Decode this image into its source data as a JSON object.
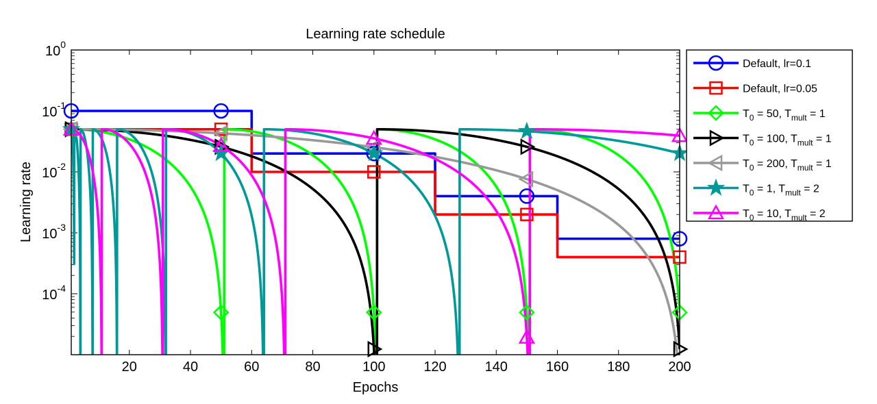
{
  "chart_data": {
    "type": "line",
    "title": "Learning rate schedule",
    "xlabel": "Epochs",
    "ylabel": "Learning rate",
    "xlim": [
      1,
      200
    ],
    "ylim": [
      1e-05,
      1
    ],
    "yscale": "log",
    "grid": false,
    "legend_position": "outside-right",
    "x_ticks": [
      20,
      40,
      60,
      80,
      100,
      120,
      140,
      160,
      180,
      200
    ],
    "x_tick_labels": [
      "20",
      "40",
      "60",
      "80",
      "100",
      "120",
      "140",
      "160",
      "180",
      "200"
    ],
    "y_tick_values": [
      1,
      0.1,
      0.01,
      0.001,
      0.0001
    ],
    "y_tick_base": [
      "10",
      "10",
      "10",
      "10",
      "10"
    ],
    "y_tick_exp": [
      "0",
      "-1",
      "-2",
      "-3",
      "-4"
    ],
    "series": [
      {
        "name": "Default, lr=0.1",
        "legend_text": "Default, lr=0.1",
        "kind": "step",
        "color": "#0000ff",
        "marker": "circle",
        "steps": [
          [
            1,
            60,
            0.1
          ],
          [
            61,
            120,
            0.02
          ],
          [
            121,
            160,
            0.004
          ],
          [
            161,
            200,
            0.0008
          ]
        ],
        "markers_x": [
          1,
          50,
          100,
          150,
          200
        ]
      },
      {
        "name": "Default, lr=0.05",
        "legend_text": "Default, lr=0.05",
        "kind": "step",
        "color": "#ff0000",
        "marker": "square",
        "steps": [
          [
            1,
            60,
            0.05
          ],
          [
            61,
            120,
            0.01
          ],
          [
            121,
            160,
            0.002
          ],
          [
            161,
            200,
            0.0004
          ]
        ],
        "markers_x": [
          1,
          50,
          100,
          150,
          200
        ]
      },
      {
        "name": "T0 = 50, Tmult = 1",
        "legend_main": "T",
        "legend_sub1": "0",
        "legend_mid": " = 50, T",
        "legend_sub2": "mult",
        "legend_end": " = 1",
        "kind": "cosine",
        "color": "#00ff00",
        "marker": "diamond",
        "lr_max": 0.05,
        "T0": 50,
        "Tmult": 1,
        "markers_x": [
          1,
          50,
          100,
          150,
          200
        ]
      },
      {
        "name": "T0 = 100, Tmult = 1",
        "legend_main": "T",
        "legend_sub1": "0",
        "legend_mid": " = 100, T",
        "legend_sub2": "mult",
        "legend_end": " = 1",
        "kind": "cosine",
        "color": "#000000",
        "marker": "triangle-right",
        "lr_max": 0.05,
        "T0": 100,
        "Tmult": 1,
        "markers_x": [
          1,
          50,
          100,
          150,
          200
        ]
      },
      {
        "name": "T0 = 200, Tmult = 1",
        "legend_main": "T",
        "legend_sub1": "0",
        "legend_mid": " = 200, T",
        "legend_sub2": "mult",
        "legend_end": " = 1",
        "kind": "cosine",
        "color": "#999999",
        "marker": "triangle-left",
        "lr_max": 0.05,
        "T0": 200,
        "Tmult": 1,
        "markers_x": [
          1,
          50,
          100,
          150,
          200
        ]
      },
      {
        "name": "T0 = 1, Tmult = 2",
        "legend_main": "T",
        "legend_sub1": "0",
        "legend_mid": " = 1, T",
        "legend_sub2": "mult",
        "legend_end": " = 2",
        "kind": "cosine",
        "color": "#009999",
        "marker": "star",
        "lr_max": 0.05,
        "T0": 1,
        "Tmult": 2,
        "markers_x": [
          1,
          50,
          100,
          150,
          200
        ]
      },
      {
        "name": "T0 = 10, Tmult = 2",
        "legend_main": "T",
        "legend_sub1": "0",
        "legend_mid": " = 10, T",
        "legend_sub2": "mult",
        "legend_end": " = 2",
        "kind": "cosine",
        "color": "#ff00ff",
        "marker": "triangle-up",
        "lr_max": 0.05,
        "T0": 10,
        "Tmult": 2,
        "markers_x": [
          1,
          50,
          100,
          150,
          200
        ]
      }
    ]
  }
}
